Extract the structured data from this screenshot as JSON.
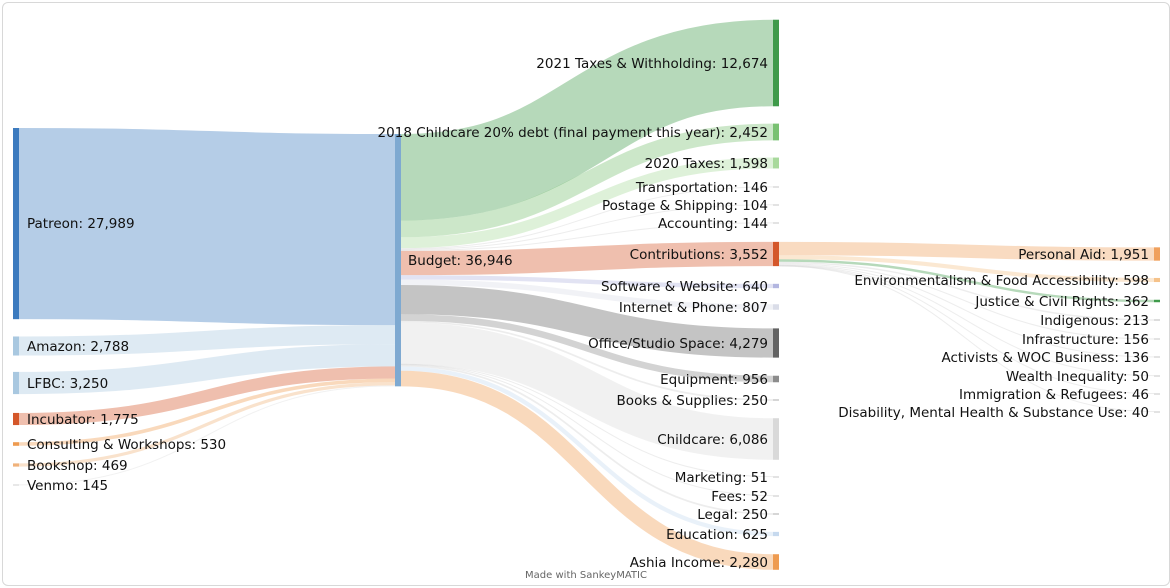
{
  "chart_data": {
    "type": "sankey",
    "nodes": [
      {
        "id": "patreon",
        "label": "Patreon",
        "value": "27,989",
        "color": "#3c7bbf"
      },
      {
        "id": "amazon",
        "label": "Amazon",
        "value": "2,788",
        "color": "#a9c8e0"
      },
      {
        "id": "lfbc",
        "label": "LFBC",
        "value": "3,250",
        "color": "#a9c8e0"
      },
      {
        "id": "incubator",
        "label": "Incubator",
        "value": "1,775",
        "color": "#d4572a"
      },
      {
        "id": "consulting",
        "label": "Consulting & Workshops",
        "value": "530",
        "color": "#ee9b50"
      },
      {
        "id": "bookshop",
        "label": "Bookshop",
        "value": "469",
        "color": "#f0b27a"
      },
      {
        "id": "venmo",
        "label": "Venmo",
        "value": "145",
        "color": "#d9d9d9"
      },
      {
        "id": "budget",
        "label": "Budget",
        "value": "36,946",
        "color": "#7ea9d1"
      },
      {
        "id": "taxes2021",
        "label": "2021 Taxes & Withholding",
        "value": "12,674",
        "color": "#3f9a4a"
      },
      {
        "id": "childcare2018",
        "label": "2018 Childcare 20% debt (final payment this year)",
        "value": "2,452",
        "color": "#79c172"
      },
      {
        "id": "taxes2020",
        "label": "2020 Taxes",
        "value": "1,598",
        "color": "#a8d99c"
      },
      {
        "id": "transport",
        "label": "Transportation",
        "value": "146",
        "color": "#d0d0d0"
      },
      {
        "id": "postage",
        "label": "Postage & Shipping",
        "value": "104",
        "color": "#d0d0d0"
      },
      {
        "id": "accounting",
        "label": "Accounting",
        "value": "144",
        "color": "#d0d0d0"
      },
      {
        "id": "contributions",
        "label": "Contributions",
        "value": "3,552",
        "color": "#d4572a"
      },
      {
        "id": "software",
        "label": "Software & Website",
        "value": "640",
        "color": "#b3b6e0"
      },
      {
        "id": "internet",
        "label": "Internet & Phone",
        "value": "807",
        "color": "#dadde8"
      },
      {
        "id": "office",
        "label": "Office/Studio Space",
        "value": "4,279",
        "color": "#636363"
      },
      {
        "id": "equipment",
        "label": "Equipment",
        "value": "956",
        "color": "#8c8c8c"
      },
      {
        "id": "books",
        "label": "Books & Supplies",
        "value": "250",
        "color": "#d0d0d0"
      },
      {
        "id": "childcare",
        "label": "Childcare",
        "value": "6,086",
        "color": "#d9d9d9"
      },
      {
        "id": "marketing",
        "label": "Marketing",
        "value": "51",
        "color": "#d0d0d0"
      },
      {
        "id": "fees",
        "label": "Fees",
        "value": "52",
        "color": "#d0d0d0"
      },
      {
        "id": "legal",
        "label": "Legal",
        "value": "250",
        "color": "#d0d0d0"
      },
      {
        "id": "education",
        "label": "Education",
        "value": "625",
        "color": "#c6d9ee"
      },
      {
        "id": "ashia",
        "label": "Ashia Income",
        "value": "2,280",
        "color": "#ee9b50"
      },
      {
        "id": "personal",
        "label": "Personal Aid",
        "value": "1,951",
        "color": "#f0a05c"
      },
      {
        "id": "environment",
        "label": "Environmentalism & Food Accessibility",
        "value": "598",
        "color": "#f5c28a"
      },
      {
        "id": "justice",
        "label": "Justice & Civil Rights",
        "value": "362",
        "color": "#3f9a4a"
      },
      {
        "id": "indigenous",
        "label": "Indigenous",
        "value": "213",
        "color": "#d0d0d0"
      },
      {
        "id": "infrastructure",
        "label": "Infrastructure",
        "value": "156",
        "color": "#d0d0d0"
      },
      {
        "id": "activists",
        "label": "Activists & WOC Business",
        "value": "136",
        "color": "#d0d0d0"
      },
      {
        "id": "wealth",
        "label": "Wealth Inequality",
        "value": "50",
        "color": "#d0d0d0"
      },
      {
        "id": "immigration",
        "label": "Immigration & Refugees",
        "value": "46",
        "color": "#d0d0d0"
      },
      {
        "id": "disability",
        "label": "Disability, Mental Health & Substance Use",
        "value": "40",
        "color": "#d0d0d0"
      }
    ],
    "links": [
      {
        "source": "patreon",
        "target": "budget",
        "value": 27989
      },
      {
        "source": "amazon",
        "target": "budget",
        "value": 2788
      },
      {
        "source": "lfbc",
        "target": "budget",
        "value": 3250
      },
      {
        "source": "incubator",
        "target": "budget",
        "value": 1775
      },
      {
        "source": "consulting",
        "target": "budget",
        "value": 530
      },
      {
        "source": "bookshop",
        "target": "budget",
        "value": 469
      },
      {
        "source": "venmo",
        "target": "budget",
        "value": 145
      },
      {
        "source": "budget",
        "target": "taxes2021",
        "value": 12674
      },
      {
        "source": "budget",
        "target": "childcare2018",
        "value": 2452
      },
      {
        "source": "budget",
        "target": "taxes2020",
        "value": 1598
      },
      {
        "source": "budget",
        "target": "transport",
        "value": 146
      },
      {
        "source": "budget",
        "target": "postage",
        "value": 104
      },
      {
        "source": "budget",
        "target": "accounting",
        "value": 144
      },
      {
        "source": "budget",
        "target": "contributions",
        "value": 3552
      },
      {
        "source": "budget",
        "target": "software",
        "value": 640
      },
      {
        "source": "budget",
        "target": "internet",
        "value": 807
      },
      {
        "source": "budget",
        "target": "office",
        "value": 4279
      },
      {
        "source": "budget",
        "target": "equipment",
        "value": 956
      },
      {
        "source": "budget",
        "target": "books",
        "value": 250
      },
      {
        "source": "budget",
        "target": "childcare",
        "value": 6086
      },
      {
        "source": "budget",
        "target": "marketing",
        "value": 51
      },
      {
        "source": "budget",
        "target": "fees",
        "value": 52
      },
      {
        "source": "budget",
        "target": "legal",
        "value": 250
      },
      {
        "source": "budget",
        "target": "education",
        "value": 625
      },
      {
        "source": "budget",
        "target": "ashia",
        "value": 2280
      },
      {
        "source": "contributions",
        "target": "personal",
        "value": 1951
      },
      {
        "source": "contributions",
        "target": "environment",
        "value": 598
      },
      {
        "source": "contributions",
        "target": "justice",
        "value": 362
      },
      {
        "source": "contributions",
        "target": "indigenous",
        "value": 213
      },
      {
        "source": "contributions",
        "target": "infrastructure",
        "value": 156
      },
      {
        "source": "contributions",
        "target": "activists",
        "value": 136
      },
      {
        "source": "contributions",
        "target": "wealth",
        "value": 50
      },
      {
        "source": "contributions",
        "target": "immigration",
        "value": 46
      },
      {
        "source": "contributions",
        "target": "disability",
        "value": 40
      }
    ]
  },
  "footer": {
    "credit": "Made with SankeyMATIC"
  }
}
